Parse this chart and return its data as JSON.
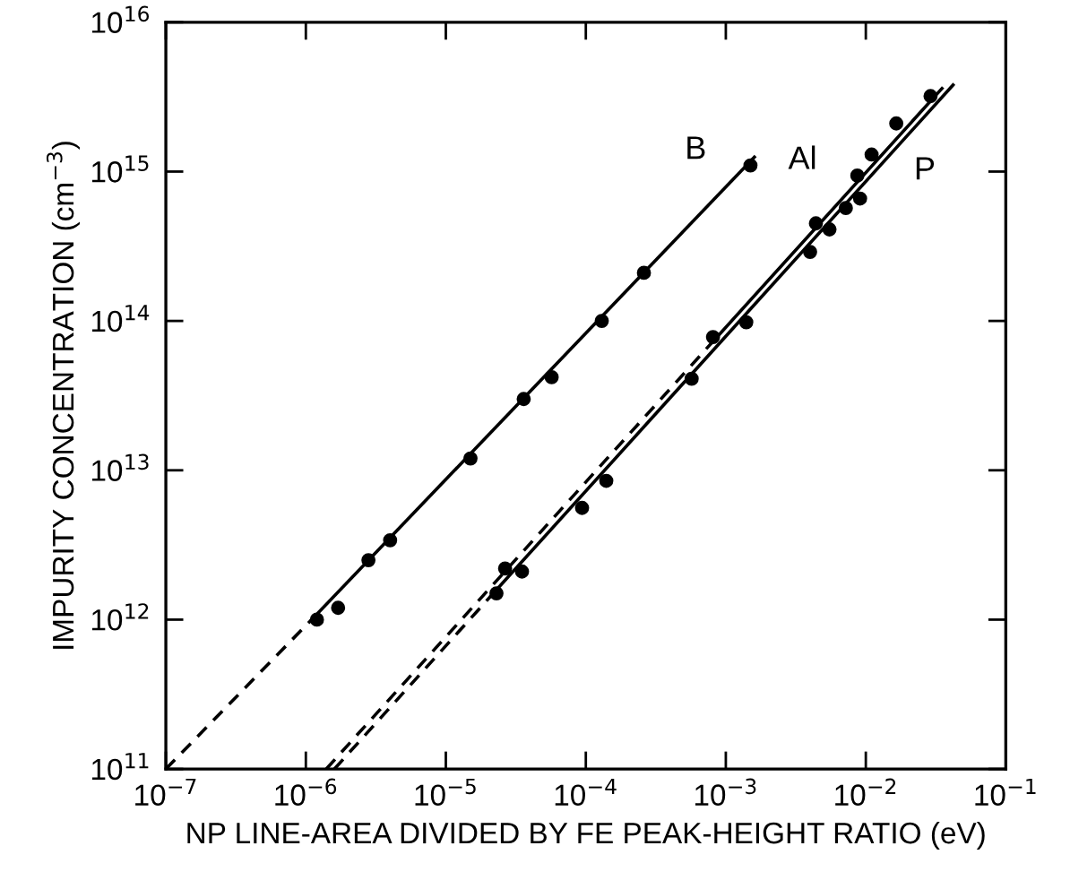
{
  "chart_data": {
    "type": "scatter",
    "xlabel": "NP LINE-AREA DIVIDED BY FE PEAK-HEIGHT RATIO (eV)",
    "ylabel": "IMPURITY CONCENTRATION (cm$^{−3}$)",
    "log": "xy",
    "grid": false,
    "marker": "circle",
    "xlim": [
      1e-07,
      0.1
    ],
    "ylim": [
      100000000000.0,
      1e+16
    ],
    "xticks": [
      {
        "value": 1e-07,
        "label": "10$^{−7}$"
      },
      {
        "value": 1e-06,
        "label": "10$^{−6}$"
      },
      {
        "value": 1e-05,
        "label": "10$^{−5}$"
      },
      {
        "value": 0.0001,
        "label": "10$^{−4}$"
      },
      {
        "value": 0.001,
        "label": "10$^{−3}$"
      },
      {
        "value": 0.01,
        "label": "10$^{−2}$"
      },
      {
        "value": 0.1,
        "label": "10$^{−1}$"
      }
    ],
    "yticks": [
      {
        "value": 100000000000.0,
        "label": "10$^{11}$"
      },
      {
        "value": 1000000000000.0,
        "label": "10$^{12}$"
      },
      {
        "value": 10000000000000.0,
        "label": "10$^{13}$"
      },
      {
        "value": 100000000000000.0,
        "label": "10$^{14}$"
      },
      {
        "value": 1000000000000000.0,
        "label": "10$^{15}$"
      },
      {
        "value": 1e+16,
        "label": "10$^{16}$"
      }
    ],
    "series": [
      {
        "name": "B",
        "color": "#000000",
        "x": [
          1.2e-06,
          1.7e-06,
          2.8e-06,
          4e-06,
          1.5e-05,
          3.6e-05,
          5.7e-05,
          0.00013,
          0.00026,
          0.0015
        ],
        "values": [
          1000000000000.0,
          1200000000000.0,
          2500000000000.0,
          3400000000000.0,
          12000000000000.0,
          30000000000000.0,
          42000000000000.0,
          100000000000000.0,
          210000000000000.0,
          1100000000000000.0
        ]
      },
      {
        "name": "Al",
        "color": "#000000",
        "x": [
          2.65e-05,
          0.00081,
          0.0044,
          0.0087,
          0.011,
          0.0165,
          0.029
        ],
        "values": [
          2200000000000.0,
          78000000000000.0,
          450000000000000.0,
          940000000000000.0,
          1300000000000000.0,
          2100000000000000.0,
          3200000000000000.0
        ]
      },
      {
        "name": "P",
        "color": "#000000",
        "x": [
          2.3e-05,
          3.5e-05,
          9.4e-05,
          0.00014,
          0.00057,
          0.0014,
          0.004,
          0.0055,
          0.0072,
          0.0091
        ],
        "values": [
          1500000000000.0,
          2100000000000.0,
          5600000000000.0,
          8500000000000.0,
          41000000000000.0,
          98000000000000.0,
          290000000000000.0,
          410000000000000.0,
          570000000000000.0,
          660000000000000.0
        ]
      },
      {
        "type": "line",
        "color": "#000000",
        "marker": "none",
        "line_style": "dashed",
        "x": [
          1e-07,
          1.1e-06
        ],
        "values": [
          100000000000.0,
          1000000000000.0
        ]
      },
      {
        "type": "line",
        "color": "#000000",
        "marker": "none",
        "line_style": "solid",
        "x": [
          1.1e-06,
          0.0016
        ],
        "values": [
          1000000000000.0,
          1250000000000000.0
        ]
      },
      {
        "type": "line",
        "color": "#000000",
        "marker": "none",
        "line_style": "dashed",
        "x": [
          1.4e-06,
          0.0008
        ],
        "values": [
          100000000000.0,
          72000000000000.0
        ]
      },
      {
        "type": "line",
        "color": "#000000",
        "marker": "none",
        "line_style": "solid",
        "x": [
          0.0008,
          0.035
        ],
        "values": [
          72000000000000.0,
          3600000000000000.0
        ]
      },
      {
        "type": "line",
        "color": "#000000",
        "marker": "none",
        "line_style": "dashed",
        "x": [
          1.6e-06,
          2.1e-05
        ],
        "values": [
          100000000000.0,
          1440000000000.0
        ]
      },
      {
        "type": "line",
        "color": "#000000",
        "marker": "none",
        "line_style": "solid",
        "x": [
          2.1e-05,
          0.042
        ],
        "values": [
          1440000000000.0,
          3800000000000000.0
        ]
      }
    ]
  }
}
